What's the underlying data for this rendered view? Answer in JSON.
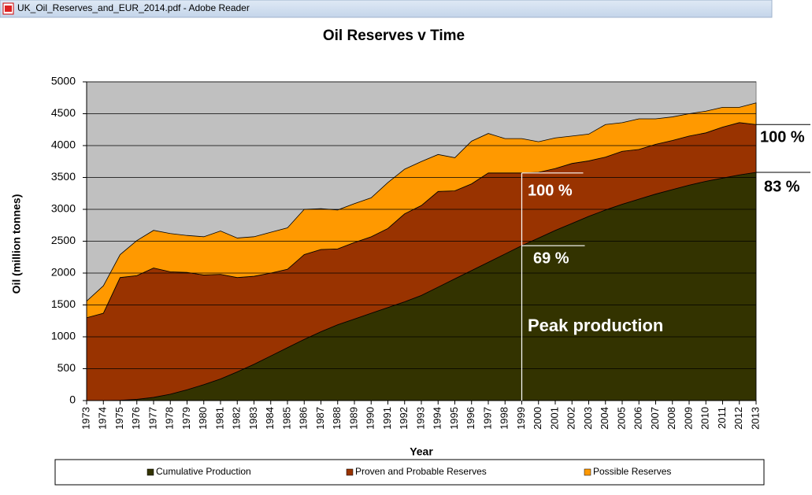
{
  "window_title": "UK_Oil_Reserves_and_EUR_2014.pdf - Adobe Reader",
  "chart_data": {
    "type": "stacked_area",
    "title": "Oil Reserves v Time",
    "x_label": "Year",
    "y_label": "Oil (million tonnes)",
    "categories": [
      "1973",
      "1974",
      "1975",
      "1976",
      "1977",
      "1978",
      "1979",
      "1980",
      "1981",
      "1982",
      "1983",
      "1984",
      "1985",
      "1986",
      "1987",
      "1988",
      "1989",
      "1990",
      "1991",
      "1992",
      "1993",
      "1994",
      "1995",
      "1996",
      "1997",
      "1998",
      "1999",
      "2000",
      "2001",
      "2002",
      "2003",
      "2004",
      "2005",
      "2006",
      "2007",
      "2008",
      "2009",
      "2010",
      "2011",
      "2012",
      "2013"
    ],
    "series": [
      {
        "name": "Cumulative Production",
        "color": "#333300",
        "values": [
          0,
          0,
          5,
          20,
          50,
          100,
          170,
          250,
          340,
          450,
          570,
          700,
          830,
          960,
          1080,
          1190,
          1280,
          1370,
          1460,
          1550,
          1650,
          1780,
          1910,
          2040,
          2170,
          2300,
          2430,
          2550,
          2670,
          2780,
          2890,
          2990,
          3080,
          3160,
          3240,
          3310,
          3380,
          3440,
          3490,
          3540,
          3580
        ]
      },
      {
        "name": "Proven and Probable Reserves",
        "color": "#993300",
        "values": [
          1300,
          1370,
          1925,
          1940,
          2030,
          1920,
          1840,
          1720,
          1640,
          1480,
          1380,
          1300,
          1230,
          1330,
          1290,
          1190,
          1200,
          1200,
          1240,
          1380,
          1410,
          1500,
          1380,
          1360,
          1400,
          1270,
          1140,
          1030,
          970,
          940,
          870,
          830,
          830,
          780,
          780,
          770,
          770,
          760,
          800,
          820,
          750
        ]
      },
      {
        "name": "Possible Reserves",
        "color": "#ff9900",
        "values": [
          260,
          430,
          360,
          550,
          590,
          600,
          580,
          600,
          680,
          620,
          620,
          640,
          650,
          710,
          640,
          610,
          610,
          610,
          720,
          700,
          690,
          580,
          520,
          670,
          620,
          540,
          540,
          480,
          480,
          430,
          420,
          510,
          450,
          480,
          400,
          370,
          350,
          340,
          310,
          240,
          340
        ]
      }
    ],
    "ylim": [
      0,
      5000
    ],
    "yticks": [
      0,
      500,
      1000,
      1500,
      2000,
      2500,
      3000,
      3500,
      4000,
      4500,
      5000
    ],
    "grid": true,
    "annotations": [
      {
        "text": "100 %"
      },
      {
        "text": "69 %"
      },
      {
        "text": "Peak production"
      },
      {
        "text": "100 %"
      },
      {
        "text": "83 %"
      }
    ]
  }
}
